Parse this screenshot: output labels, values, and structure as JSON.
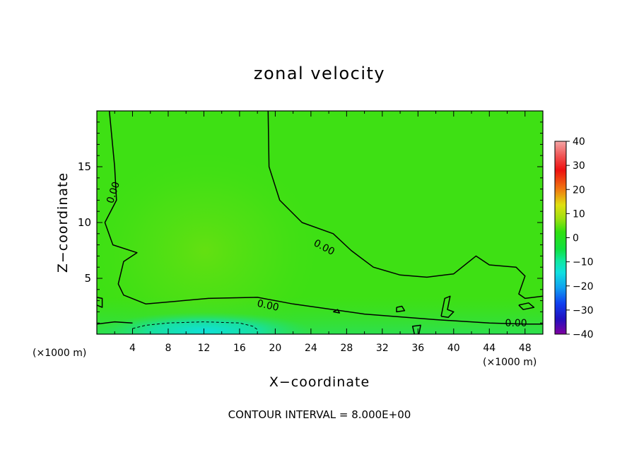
{
  "chart_data": {
    "type": "heatmap",
    "title": "zonal velocity",
    "xlabel": "X−coordinate",
    "ylabel": "Z−coordinate",
    "x_unit_left": "(×1000 m)",
    "x_unit_right": "(×1000 m)",
    "xlim": [
      0,
      50
    ],
    "ylim": [
      0,
      20
    ],
    "x_ticks": [
      4,
      8,
      12,
      16,
      20,
      24,
      28,
      32,
      36,
      40,
      44,
      48
    ],
    "y_ticks": [
      5,
      10,
      15
    ],
    "colorbar": {
      "range": [
        -40,
        40
      ],
      "ticks": [
        40,
        30,
        20,
        10,
        0,
        -10,
        -20,
        -30,
        -40
      ],
      "tick_labels": [
        "40",
        "30",
        "20",
        "10",
        "0",
        "−10",
        "−20",
        "−30",
        "−40"
      ]
    },
    "contour_label": "0.00",
    "contour_interval_text": "CONTOUR INTERVAL = 8.000E+00",
    "field_features": [
      {
        "description": "broad weak positive region",
        "x_center": 12,
        "z_center": 7,
        "value": 3
      },
      {
        "description": "negative near-surface jet",
        "x_range": [
          4,
          20
        ],
        "z_range": [
          0,
          1.5
        ],
        "value": -8
      },
      {
        "description": "background",
        "value": 0
      }
    ],
    "zero_contour_lines": [
      {
        "points": [
          [
            1.4,
            20
          ],
          [
            2.0,
            15
          ],
          [
            2.2,
            12
          ],
          [
            0.9,
            10
          ],
          [
            1.8,
            8
          ],
          [
            4.5,
            7.3
          ],
          [
            3.0,
            6.5
          ],
          [
            2.4,
            4.5
          ],
          [
            3.0,
            3.5
          ],
          [
            5.5,
            2.7
          ],
          [
            12.5,
            3.2
          ],
          [
            18,
            3.3
          ],
          [
            22,
            2.7
          ],
          [
            30,
            1.8
          ],
          [
            38,
            1.3
          ],
          [
            44,
            1.0
          ],
          [
            48,
            0.9
          ],
          [
            50,
            0.9
          ]
        ]
      },
      {
        "points": [
          [
            19.2,
            20
          ],
          [
            19.3,
            15
          ],
          [
            20.5,
            12
          ],
          [
            23,
            10
          ],
          [
            26.5,
            9
          ],
          [
            28.5,
            7.5
          ],
          [
            31,
            6
          ],
          [
            34,
            5.3
          ],
          [
            37,
            5.1
          ],
          [
            40,
            5.4
          ],
          [
            42.5,
            7.0
          ],
          [
            44,
            6.2
          ],
          [
            47,
            6.0
          ],
          [
            48,
            5.2
          ],
          [
            47.3,
            3.6
          ],
          [
            48,
            3.2
          ],
          [
            50,
            3.4
          ]
        ]
      },
      {
        "points": [
          [
            0,
            0.9
          ],
          [
            2,
            1.1
          ],
          [
            4,
            1.0
          ]
        ]
      },
      {
        "points": [
          [
            0,
            2.6
          ],
          [
            0.6,
            2.4
          ],
          [
            0.6,
            3.2
          ],
          [
            0,
            3.3
          ]
        ]
      },
      {
        "points": [
          [
            33.6,
            2.4
          ],
          [
            34.2,
            2.5
          ],
          [
            34.5,
            2.1
          ],
          [
            33.6,
            2.0
          ],
          [
            33.6,
            2.4
          ]
        ]
      },
      {
        "points": [
          [
            38.6,
            1.6
          ],
          [
            39.0,
            3.2
          ],
          [
            39.6,
            3.4
          ],
          [
            39.3,
            2.2
          ],
          [
            40.0,
            2.0
          ],
          [
            39.4,
            1.5
          ],
          [
            38.6,
            1.6
          ]
        ]
      },
      {
        "points": [
          [
            47.3,
            2.6
          ],
          [
            48.4,
            2.8
          ],
          [
            49.0,
            2.4
          ],
          [
            47.8,
            2.2
          ],
          [
            47.3,
            2.6
          ]
        ]
      },
      {
        "points": [
          [
            26.5,
            2.0
          ],
          [
            27.0,
            2.2
          ],
          [
            27.2,
            1.9
          ],
          [
            26.5,
            2.0
          ]
        ]
      },
      {
        "points": [
          [
            35.6,
            0.0
          ],
          [
            35.4,
            0.7
          ],
          [
            36.3,
            0.8
          ],
          [
            36.1,
            0.0
          ]
        ]
      }
    ],
    "negative_contour_lines": [
      {
        "points": [
          [
            4,
            0.5
          ],
          [
            5.5,
            0.8
          ],
          [
            8,
            1.0
          ],
          [
            12,
            1.1
          ],
          [
            16,
            1.0
          ],
          [
            17.5,
            0.7
          ],
          [
            18,
            0.4
          ]
        ]
      }
    ],
    "contour_labels_at": [
      [
        1.8,
        12.7
      ],
      [
        25.5,
        7.8
      ],
      [
        19.2,
        2.6
      ],
      [
        47.0,
        1.0
      ]
    ],
    "grid": false,
    "legend": "colorbar-right"
  }
}
